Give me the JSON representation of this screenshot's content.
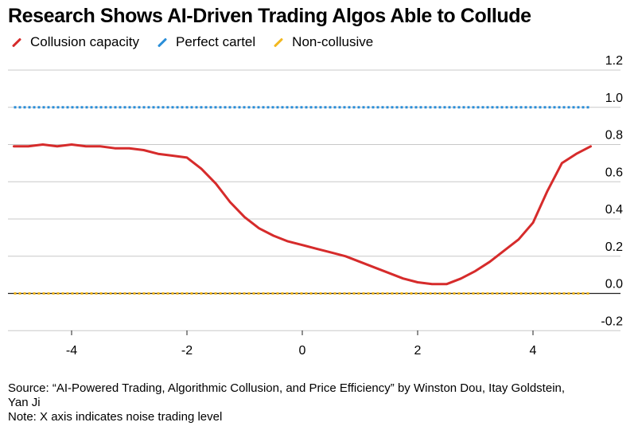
{
  "title": "Research Shows AI-Driven Trading Algos Able to Collude",
  "colors": {
    "red": "#d62b2b",
    "blue": "#2a8ed8",
    "yellow": "#f2b820",
    "grid": "#c8c8c8",
    "axis": "#222222",
    "text": "#000000"
  },
  "source_line1": "Source: “AI-Powered Trading, Algorithmic Collusion, and Price Efficiency” by Winston Dou, Itay Goldstein,",
  "source_line2": "Yan Ji",
  "note": "Note: X axis indicates noise trading level",
  "chart_data": {
    "type": "line",
    "title": "Research Shows AI-Driven Trading Algos Able to Collude",
    "xlabel": "",
    "ylabel": "",
    "xlim": [
      -5.1,
      5.5
    ],
    "ylim": [
      -0.2,
      1.2
    ],
    "y_axis_side": "right",
    "grid": "horizontal",
    "legend_position": "top-left",
    "x_ticks": [
      -4,
      -2,
      0,
      2,
      4
    ],
    "x_tick_labels": [
      "-4",
      "-2",
      "0",
      "2",
      "4"
    ],
    "y_ticks": [
      -0.2,
      0.0,
      0.2,
      0.4,
      0.6,
      0.8,
      1.0,
      1.2
    ],
    "y_tick_labels": [
      "-0.2",
      "0.0",
      "0.2",
      "0.4",
      "0.6",
      "0.8",
      "1.0",
      "1.2"
    ],
    "series": [
      {
        "name": "Collusion capacity",
        "color": "#d62b2b",
        "style": "solid",
        "x": [
          -5.0,
          -4.75,
          -4.5,
          -4.25,
          -4.0,
          -3.75,
          -3.5,
          -3.25,
          -3.0,
          -2.75,
          -2.5,
          -2.25,
          -2.0,
          -1.75,
          -1.5,
          -1.25,
          -1.0,
          -0.75,
          -0.5,
          -0.25,
          0.0,
          0.25,
          0.5,
          0.75,
          1.0,
          1.25,
          1.5,
          1.75,
          2.0,
          2.25,
          2.5,
          2.75,
          3.0,
          3.25,
          3.5,
          3.75,
          4.0,
          4.25,
          4.5,
          4.75,
          5.0
        ],
        "y": [
          0.79,
          0.79,
          0.8,
          0.79,
          0.8,
          0.79,
          0.79,
          0.78,
          0.78,
          0.77,
          0.75,
          0.74,
          0.73,
          0.67,
          0.59,
          0.49,
          0.41,
          0.35,
          0.31,
          0.28,
          0.26,
          0.24,
          0.22,
          0.2,
          0.17,
          0.14,
          0.11,
          0.08,
          0.06,
          0.05,
          0.05,
          0.08,
          0.12,
          0.17,
          0.23,
          0.29,
          0.38,
          0.55,
          0.7,
          0.75,
          0.79
        ]
      },
      {
        "name": "Perfect cartel",
        "color": "#2a8ed8",
        "style": "dotted",
        "x": [
          -5.0,
          5.0
        ],
        "y": [
          1.0,
          1.0
        ]
      },
      {
        "name": "Non-collusive",
        "color": "#f2b820",
        "style": "dotted",
        "x": [
          -5.0,
          5.0
        ],
        "y": [
          0.0,
          0.0
        ]
      }
    ]
  }
}
